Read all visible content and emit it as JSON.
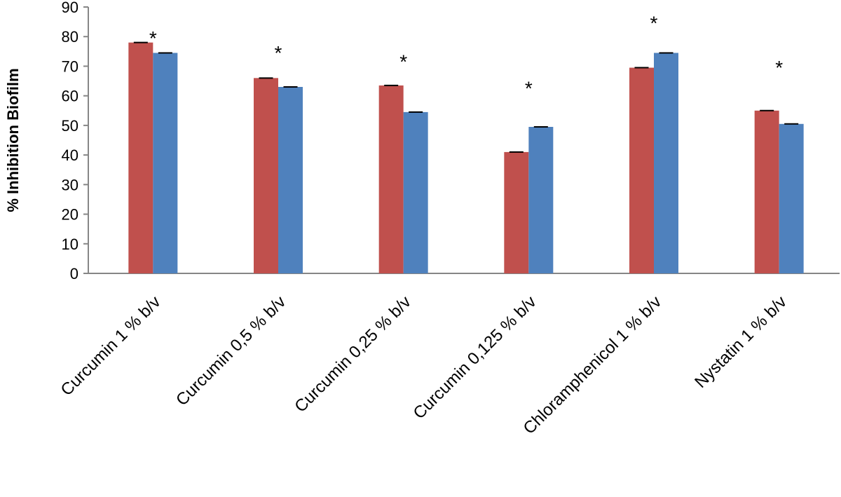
{
  "chart_data": {
    "type": "bar",
    "title": "",
    "xlabel": "",
    "ylabel": "% Inhibition  Biofilm",
    "ylim": [
      0,
      90
    ],
    "yticks": [
      0,
      10,
      20,
      30,
      40,
      50,
      60,
      70,
      80,
      90
    ],
    "grid": false,
    "categories": [
      "Curcumin 1 % b/v",
      "Curcumin 0,5 % b/v",
      "Curcumin 0,25 % b/v",
      "Curcumin 0,125 % b/v",
      "Chloramphenicol 1 % b/v",
      "Nystatin 1 % b/v"
    ],
    "series": [
      {
        "values": [
          78,
          66,
          63.5,
          41,
          69.5,
          55
        ],
        "color": "#C0504D"
      },
      {
        "values": [
          74.5,
          63,
          54.5,
          49.5,
          74.5,
          50.5
        ],
        "color": "#4F81BD"
      }
    ],
    "annotations": [
      "*",
      "*",
      "*",
      "*",
      "*",
      "*"
    ],
    "annotation_y": [
      82,
      77,
      74,
      65,
      87,
      72
    ]
  }
}
